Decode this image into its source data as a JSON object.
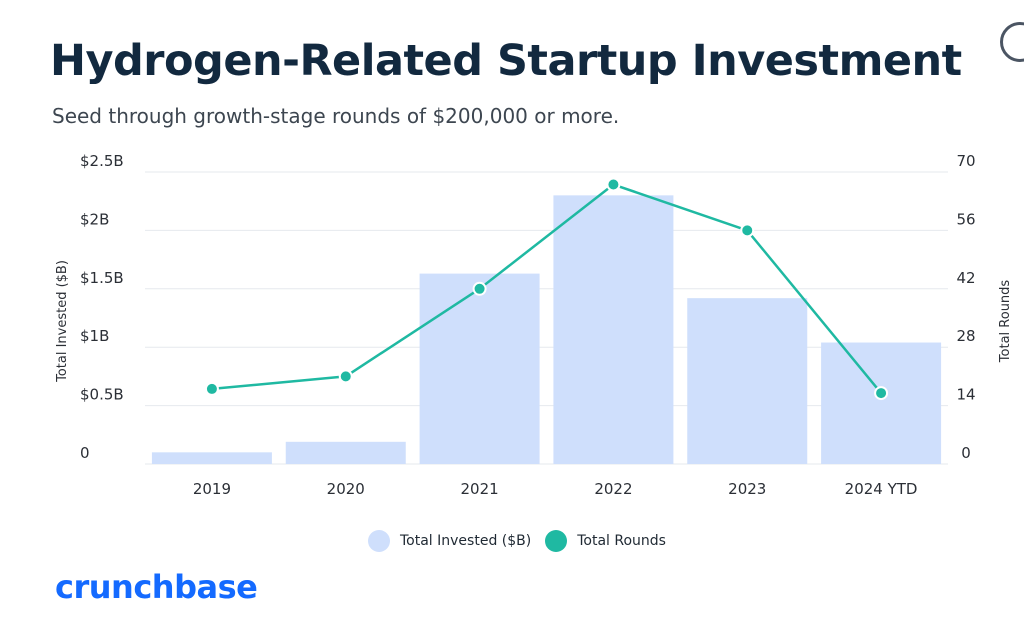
{
  "title": "Hydrogen-Related Startup Investment",
  "subtitle": "Seed through growth-stage rounds of $200,000 or more.",
  "brand": {
    "name": "crunchbase",
    "color": "#146aff"
  },
  "colors": {
    "bar": "#cfdffc",
    "line": "#1fb9a2",
    "grid": "#e6e9ee",
    "axis_text": "#2b2f36"
  },
  "chart_data": {
    "type": "bar",
    "categories": [
      "2019",
      "2020",
      "2021",
      "2022",
      "2023",
      "2024 YTD"
    ],
    "series": [
      {
        "name": "Total Invested ($B)",
        "type": "bar",
        "axis": "left",
        "values": [
          0.1,
          0.19,
          1.63,
          2.3,
          1.42,
          1.04
        ]
      },
      {
        "name": "Total Rounds",
        "type": "line",
        "axis": "right",
        "values": [
          18,
          21,
          42,
          67,
          56,
          17
        ]
      }
    ],
    "left_axis": {
      "label": "Total Invested ($B)",
      "ylim": [
        0,
        2.5
      ],
      "ticks": [
        0,
        0.5,
        1,
        1.5,
        2,
        2.5
      ],
      "tick_labels": [
        "0",
        "$0.5B",
        "$1B",
        "$1.5B",
        "$2B",
        "$2.5B"
      ]
    },
    "right_axis": {
      "label": "Total Rounds",
      "ylim": [
        0,
        70
      ],
      "ticks": [
        0,
        14,
        28,
        42,
        56,
        70
      ],
      "tick_labels": [
        "0",
        "14",
        "28",
        "42",
        "56",
        "70"
      ]
    },
    "grid": true,
    "legend": {
      "position": "bottom-center",
      "entries": [
        "Total Invested ($B)",
        "Total Rounds"
      ]
    }
  }
}
